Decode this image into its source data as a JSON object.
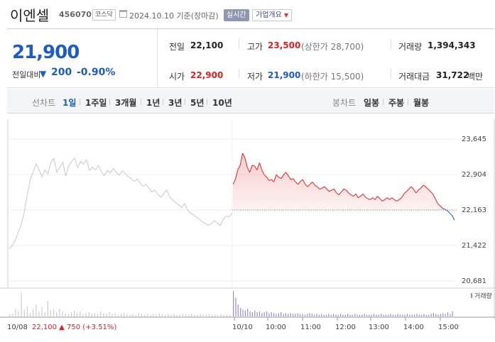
{
  "header": {
    "name": "이엔셀",
    "code": "456070",
    "market": "코스닥",
    "date": "2024.10.10",
    "basis": "기준(장마감)",
    "realtime_label": "실시간",
    "company_label": "기업개요"
  },
  "quote": {
    "price": "21,900",
    "change_label": "전일대비",
    "change_arrow": "▼",
    "change_amount": "200",
    "change_pct": "-0.90%"
  },
  "stats": {
    "prev_close_label": "전일",
    "prev_close": "22,100",
    "high_label": "고가",
    "high": "23,500",
    "upper_limit": "(상한가 28,700)",
    "volume_label": "거래량",
    "volume": "1,394,343",
    "open_label": "시가",
    "open": "22,900",
    "low_label": "저가",
    "low": "21,900",
    "lower_limit": "(하한가 15,500)",
    "amount_label": "거래대금",
    "amount": "31,722",
    "amount_unit": "백만"
  },
  "period_bar": {
    "line_label": "선차트",
    "periods": [
      "1일",
      "1주일",
      "3개월",
      "1년",
      "3년",
      "5년",
      "10년"
    ],
    "active_period": "1일",
    "candle_label": "봉차트",
    "candles": [
      "일봉",
      "주봉",
      "월봉"
    ]
  },
  "colors": {
    "up": "#e21f1f",
    "down": "#1d5cc7",
    "prev_day_line": "#c9c9c9",
    "volume_bar": "#9a8ad6"
  },
  "chart_data": {
    "type": "line",
    "y_ticks": [
      "23,645",
      "22,904",
      "22,163",
      "21,422",
      "20,681"
    ],
    "ylim": [
      20681,
      23645
    ],
    "baseline": 22163,
    "x_ticks": [
      "10/08",
      "10/10",
      "10:00",
      "11:00",
      "12:00",
      "13:00",
      "14:00",
      "15:00"
    ],
    "volume_label": "거래량",
    "footer": {
      "date": "10/08",
      "close": "22,100",
      "arrow": "▲",
      "change": "750",
      "pct": "(+3.51%)"
    },
    "series": [
      {
        "values": [
          21350,
          21420,
          21520,
          21700,
          21850,
          22100,
          22450,
          22780,
          22950,
          23120,
          23010,
          22860,
          23000,
          22920,
          23150,
          23240,
          22950,
          23050,
          23160,
          22870,
          23080,
          23180,
          23250,
          23050,
          23180,
          23120,
          23210,
          22990,
          23060,
          23000,
          23090,
          22960,
          22880,
          22990,
          22940,
          23030,
          22950,
          22890,
          22980,
          22930,
          22860,
          22820,
          22760,
          22810,
          22730,
          22660,
          22700,
          22610,
          22540,
          22580,
          22490,
          22430,
          22510,
          22580,
          22430,
          22370,
          22320,
          22270,
          22210,
          22300,
          22160,
          22100,
          22060,
          22010,
          21970,
          21910,
          21880,
          21840,
          21880,
          21940,
          21890,
          21840,
          21970,
          22040,
          22020,
          22100
        ]
      },
      {
        "values": [
          22700,
          22800,
          23000,
          23100,
          23350,
          23250,
          23050,
          22950,
          23100,
          23080,
          23000,
          23150,
          23000,
          22900,
          22850,
          22780,
          22800,
          22750,
          22900,
          22850,
          22820,
          22900,
          22950,
          22880,
          22800,
          22820,
          22750,
          22700,
          22760,
          22800,
          22700,
          22650,
          22700,
          22750,
          22680,
          22650,
          22600,
          22620,
          22650,
          22600,
          22550,
          22580,
          22600,
          22520,
          22480,
          22540,
          22600,
          22580,
          22520,
          22480,
          22450,
          22500,
          22420,
          22450,
          22500,
          22430,
          22400,
          22380,
          22420,
          22380,
          22450,
          22400,
          22350,
          22380,
          22420,
          22380,
          22420,
          22380,
          22350,
          22380,
          22420,
          22500,
          22550,
          22600,
          22650,
          22600,
          22520,
          22580,
          22620,
          22680,
          22650,
          22600,
          22550,
          22500,
          22400,
          22300,
          22250,
          22200,
          22180,
          22150,
          22100,
          22050,
          21950
        ]
      }
    ],
    "volume": [
      {
        "values": [
          2,
          3,
          9,
          6,
          28,
          8,
          12,
          4,
          9,
          14,
          6,
          11,
          5,
          18,
          7,
          8,
          5,
          9,
          6,
          4,
          3,
          5,
          7,
          4,
          6,
          3,
          4,
          5,
          3,
          4,
          3,
          6,
          4,
          3,
          5,
          3,
          4,
          2,
          3,
          4,
          3,
          2,
          3,
          2,
          4,
          3,
          2,
          3,
          2,
          3,
          2,
          4,
          3,
          2,
          3,
          2,
          3,
          2,
          2,
          3,
          2,
          2,
          3,
          2,
          2,
          3,
          2,
          2,
          3,
          2,
          2,
          2,
          3,
          2,
          2,
          2
        ]
      },
      {
        "values": [
          30,
          22,
          14,
          10,
          8,
          7,
          9,
          6,
          5,
          7,
          5,
          6,
          4,
          5,
          6,
          4,
          5,
          4,
          3,
          4,
          5,
          3,
          4,
          3,
          4,
          3,
          3,
          4,
          3,
          3,
          2,
          3,
          4,
          3,
          2,
          3,
          2,
          3,
          2,
          2,
          3,
          2,
          3,
          2,
          2,
          3,
          2,
          2,
          3,
          2,
          2,
          3,
          2,
          2,
          2,
          3,
          2,
          2,
          2,
          3,
          2,
          2,
          3,
          2,
          2,
          2,
          3,
          2,
          2,
          3,
          2,
          2,
          2,
          3,
          2,
          2,
          2,
          3,
          2,
          2,
          3,
          2,
          2,
          3,
          4,
          3,
          2,
          3,
          4,
          3,
          5,
          3,
          6
        ]
      }
    ]
  }
}
